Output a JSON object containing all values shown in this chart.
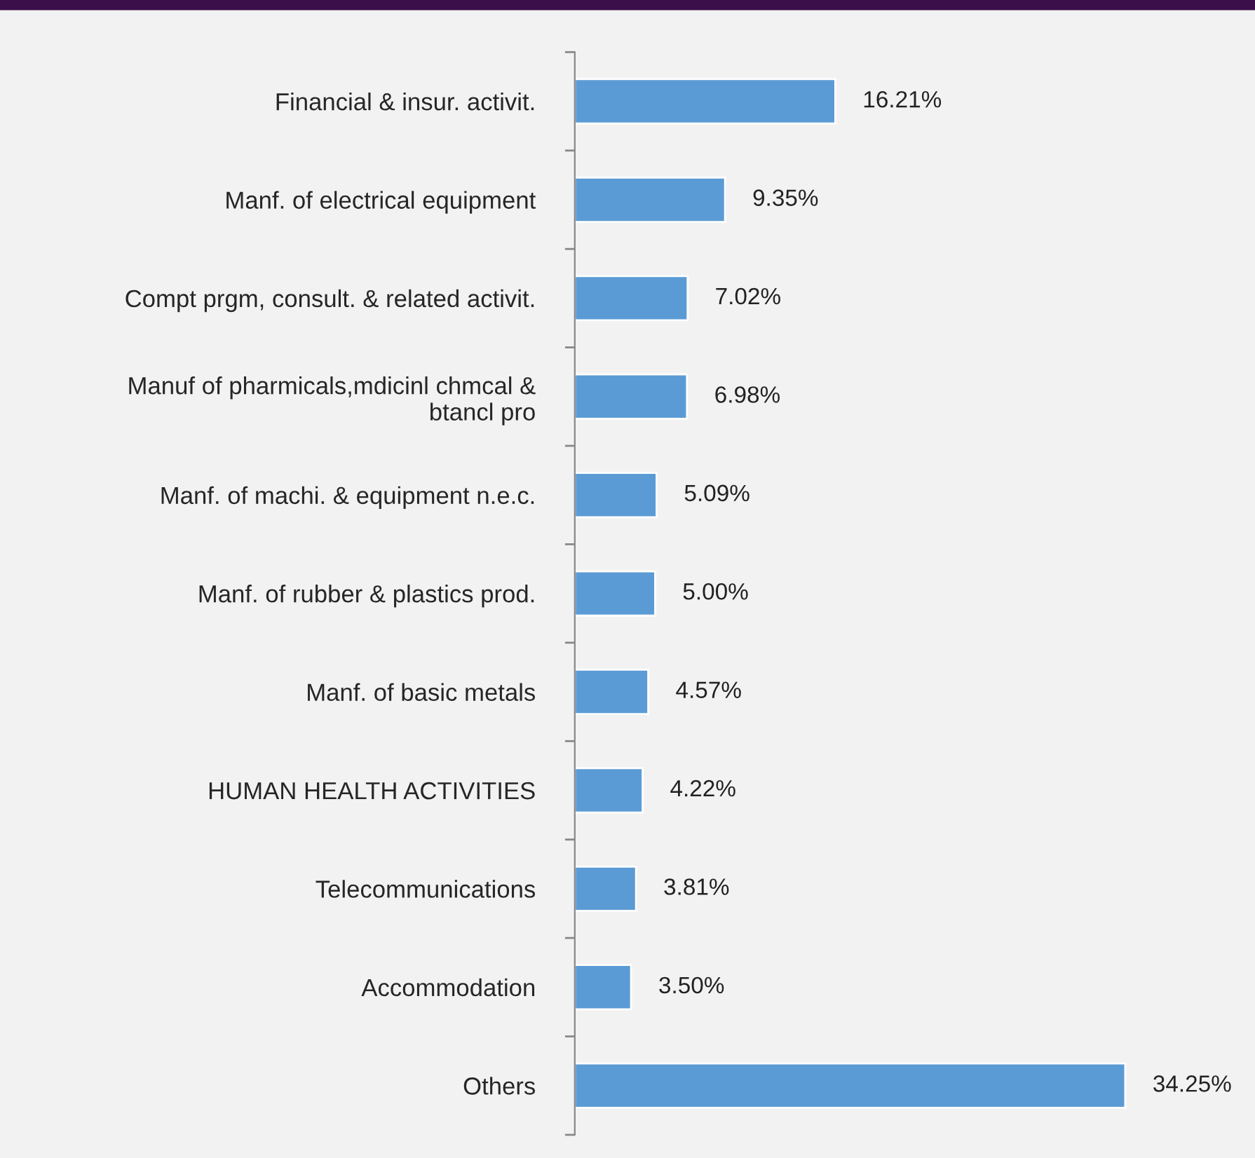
{
  "chart_data": {
    "type": "bar",
    "orientation": "horizontal",
    "categories": [
      "Financial & insur. activit.",
      "Manf. of electrical equipment",
      "Compt prgm, consult. & related activit.",
      "Manuf of pharmicals,mdicinl chmcal & btancl pro",
      "Manf. of machi. & equipment n.e.c.",
      "Manf. of rubber & plastics prod.",
      "Manf. of basic metals",
      "HUMAN HEALTH ACTIVITIES",
      "Telecommunications",
      "Accommodation",
      "Others"
    ],
    "values": [
      16.21,
      9.35,
      7.02,
      6.98,
      5.09,
      5.0,
      4.57,
      4.22,
      3.81,
      3.5,
      34.25
    ],
    "value_labels": [
      "16.21%",
      "9.35%",
      "7.02%",
      "6.98%",
      "5.09%",
      "5.00%",
      "4.57%",
      "4.22%",
      "3.81%",
      "3.50%",
      "34.25%"
    ],
    "color": "#5b9bd5",
    "tick_labels": "y",
    "grid": false,
    "legend": false
  }
}
